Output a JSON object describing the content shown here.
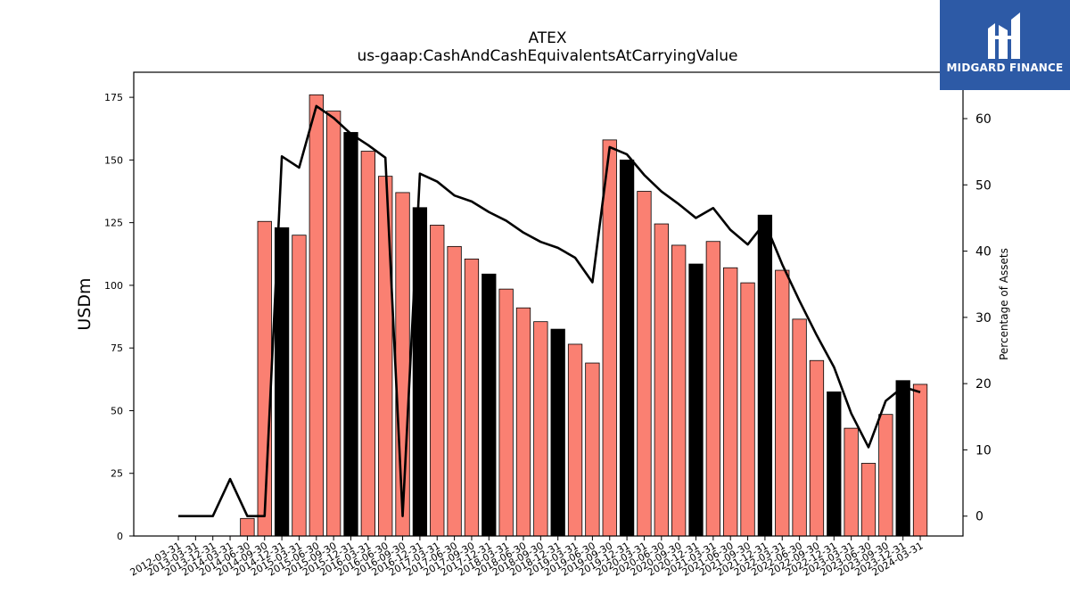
{
  "brand": {
    "name": "MIDGARD FINANCE",
    "color": "#2d5aa6",
    "icon": "midgard-logo-icon"
  },
  "chart_data": {
    "type": "bar",
    "title": "ATEX",
    "subtitle": "us-gaap:CashAndCashEquivalentsAtCarryingValue",
    "ylabel": "USDm",
    "y2label": "Percentage of Assets",
    "ylim": [
      0,
      185
    ],
    "y2lim": [
      -3,
      67
    ],
    "yticks": [
      0,
      25,
      50,
      75,
      100,
      125,
      150,
      175
    ],
    "y2ticks": [
      0,
      10,
      20,
      30,
      40,
      50,
      60
    ],
    "colors": {
      "bar": "#fa8072",
      "bar_fiscal_year_end": "#000000",
      "line": "#000000"
    },
    "categories": [
      "2012-03-31",
      "2013-03-31",
      "2013-12-31",
      "2014-03-31",
      "2014-06-30",
      "2014-09-30",
      "2014-12-31",
      "2015-03-31",
      "2015-06-30",
      "2015-09-30",
      "2015-12-31",
      "2016-03-31",
      "2016-06-30",
      "2016-09-30",
      "2016-12-31",
      "2017-03-31",
      "2017-06-30",
      "2017-09-30",
      "2017-12-31",
      "2018-03-31",
      "2018-06-30",
      "2018-09-30",
      "2018-12-31",
      "2019-03-31",
      "2019-06-30",
      "2019-09-30",
      "2019-12-31",
      "2020-03-31",
      "2020-06-30",
      "2020-09-30",
      "2020-12-31",
      "2021-03-31",
      "2021-06-30",
      "2021-09-30",
      "2021-12-31",
      "2022-03-31",
      "2022-06-30",
      "2022-09-30",
      "2022-12-31",
      "2023-03-31",
      "2023-06-30",
      "2023-09-30",
      "2023-12-31",
      "2024-03-31"
    ],
    "series": [
      {
        "type": "bar",
        "axis": "left",
        "values": [
          0,
          0,
          0,
          0,
          7,
          125.5,
          123,
          120,
          176,
          169.5,
          161,
          153.5,
          143.5,
          137,
          131,
          124,
          115.5,
          110.5,
          104.5,
          98.5,
          91,
          85.5,
          82.5,
          76.5,
          69,
          158,
          150,
          137.5,
          124.5,
          116,
          108.5,
          117.5,
          107,
          101,
          128,
          106,
          86.5,
          70,
          57.5,
          43,
          29,
          48.5,
          62,
          60.5
        ],
        "highlight": [
          false,
          false,
          false,
          false,
          false,
          false,
          true,
          false,
          false,
          false,
          true,
          false,
          false,
          false,
          true,
          false,
          false,
          false,
          true,
          false,
          false,
          false,
          true,
          false,
          false,
          false,
          true,
          false,
          false,
          false,
          true,
          false,
          false,
          false,
          true,
          false,
          false,
          false,
          true,
          false,
          false,
          false,
          true,
          false
        ]
      },
      {
        "type": "line",
        "axis": "right",
        "values": [
          0,
          0,
          0,
          5.6,
          0,
          0,
          54.3,
          52.6,
          61.9,
          60.1,
          57.7,
          56,
          54.1,
          0,
          51.7,
          50.5,
          48.4,
          47.5,
          45.9,
          44.6,
          42.8,
          41.4,
          40.5,
          39,
          35.3,
          55.7,
          54.6,
          51.5,
          49,
          47.1,
          45,
          46.5,
          43.2,
          41,
          44.3,
          38,
          32.5,
          27.3,
          22.5,
          15.5,
          10.4,
          17.4,
          19.5,
          18.7
        ]
      }
    ]
  }
}
